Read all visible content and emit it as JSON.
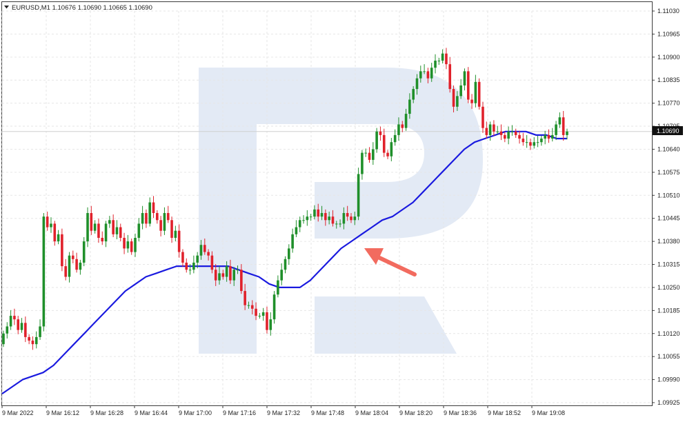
{
  "chart_data": {
    "type": "candlestick",
    "title": "EURUSD,M1 1.10676 1.10690 1.10665 1.10690",
    "symbol": "EURUSD",
    "timeframe": "M1",
    "last_ohlc": {
      "open": 1.10676,
      "high": 1.1069,
      "low": 1.10665,
      "close": 1.1069
    },
    "current_price_label": "1.10690",
    "current_price": 1.1069,
    "ylim": [
      1.09925,
      1.1103
    ],
    "y_ticks": [
      "1.11030",
      "1.10965",
      "1.10900",
      "1.10835",
      "1.10770",
      "1.10705",
      "1.10640",
      "1.10575",
      "1.10510",
      "1.10445",
      "1.10380",
      "1.10315",
      "1.10250",
      "1.10185",
      "1.10120",
      "1.10055",
      "1.09990",
      "1.09925"
    ],
    "x_ticks": [
      "9 Mar 2022",
      "9 Mar 16:12",
      "9 Mar 16:28",
      "9 Mar 16:44",
      "9 Mar 17:00",
      "9 Mar 17:16",
      "9 Mar 17:32",
      "9 Mar 17:48",
      "9 Mar 18:04",
      "9 Mar 18:20",
      "9 Mar 18:36",
      "9 Mar 18:52",
      "9 Mar 19:08"
    ],
    "grid": true,
    "colors": {
      "bull": "#1f8f2a",
      "bear": "#e0212b",
      "moving_average": "#1a1adf",
      "arrow": "#f26b5f",
      "watermark": "#e3eaf5",
      "grid": "#e6e6e6",
      "axis_text": "#222222",
      "price_label_bg": "#111111",
      "price_label_text": "#ffffff"
    },
    "series_close": [
      1.1012,
      1.1014,
      1.1017,
      1.1016,
      1.1013,
      1.1015,
      1.1011,
      1.101,
      1.1009,
      1.1011,
      1.1014,
      1.1045,
      1.1042,
      1.1043,
      1.1038,
      1.104,
      1.1031,
      1.1028,
      1.1034,
      1.1033,
      1.103,
      1.1032,
      1.1038,
      1.1046,
      1.1041,
      1.1043,
      1.1039,
      1.1038,
      1.1043,
      1.1044,
      1.104,
      1.1042,
      1.1039,
      1.1036,
      1.1038,
      1.1035,
      1.1039,
      1.1043,
      1.1046,
      1.1043,
      1.1049,
      1.1046,
      1.1044,
      1.1041,
      1.1046,
      1.1044,
      1.1039,
      1.1041,
      1.1035,
      1.1032,
      1.103,
      1.103,
      1.1032,
      1.1034,
      1.1037,
      1.1035,
      1.1034,
      1.103,
      1.1027,
      1.1029,
      1.1028,
      1.1031,
      1.1027,
      1.103,
      1.103,
      1.1024,
      1.102,
      1.102,
      1.1019,
      1.1017,
      1.1017,
      1.1018,
      1.1013,
      1.1016,
      1.1023,
      1.1027,
      1.103,
      1.1033,
      1.1036,
      1.104,
      1.1042,
      1.1044,
      1.1044,
      1.1045,
      1.1045,
      1.1047,
      1.1045,
      1.1046,
      1.1044,
      1.1045,
      1.1043,
      1.1043,
      1.1043,
      1.1046,
      1.1045,
      1.1044,
      1.1045,
      1.1057,
      1.1063,
      1.1063,
      1.1061,
      1.1064,
      1.1069,
      1.1068,
      1.1063,
      1.1062,
      1.1066,
      1.1068,
      1.1071,
      1.107,
      1.1074,
      1.1078,
      1.1081,
      1.1084,
      1.1086,
      1.1086,
      1.1084,
      1.1087,
      1.1089,
      1.1089,
      1.1091,
      1.1088,
      1.1081,
      1.1076,
      1.1079,
      1.1082,
      1.1086,
      1.1078,
      1.1077,
      1.1083,
      1.1076,
      1.107,
      1.1068,
      1.1071,
      1.1069,
      1.1069,
      1.1068,
      1.1067,
      1.1069,
      1.1069,
      1.1068,
      1.1067,
      1.1066,
      1.1066,
      1.1065,
      1.1066,
      1.1066,
      1.1067,
      1.1068,
      1.1067,
      1.1068,
      1.1071,
      1.1073,
      1.1068,
      1.1069
    ],
    "series_ma": [
      1.0995,
      1.0997,
      1.0999,
      1.1,
      1.1001,
      1.1003,
      1.1006,
      1.1009,
      1.1012,
      1.1015,
      1.1018,
      1.1021,
      1.1024,
      1.1026,
      1.1028,
      1.1029,
      1.103,
      1.1031,
      1.1031,
      1.1031,
      1.1031,
      1.1031,
      1.1031,
      1.103,
      1.1029,
      1.1028,
      1.1026,
      1.1025,
      1.1025,
      1.1025,
      1.1027,
      1.103,
      1.1033,
      1.1036,
      1.1038,
      1.104,
      1.1042,
      1.1044,
      1.1045,
      1.1047,
      1.1049,
      1.1052,
      1.1055,
      1.1058,
      1.1061,
      1.1064,
      1.1066,
      1.1067,
      1.1068,
      1.1069,
      1.1069,
      1.1069,
      1.1068,
      1.1068,
      1.1067,
      1.1067
    ]
  }
}
